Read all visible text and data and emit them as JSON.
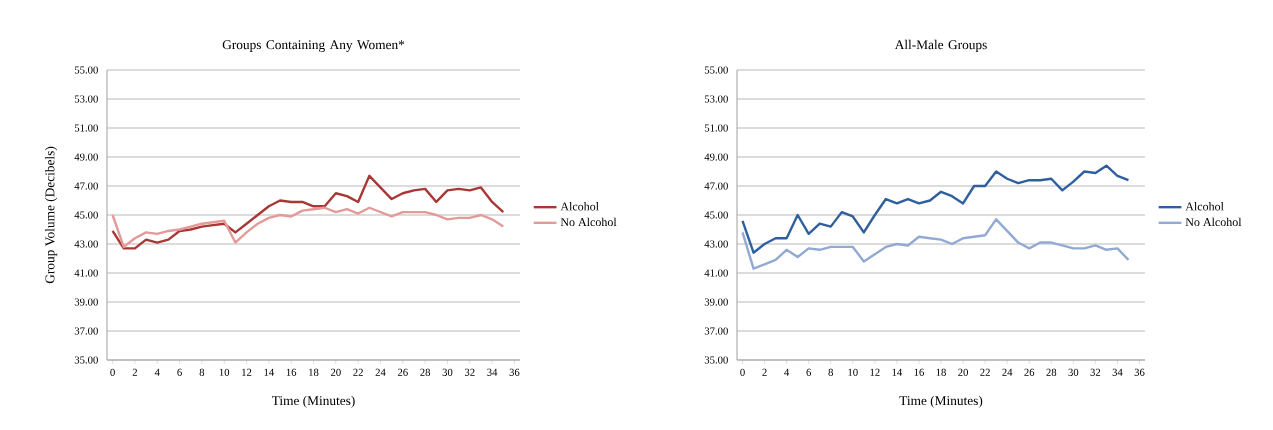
{
  "chart_data": [
    {
      "type": "line",
      "title": "Groups Containing Any Women*",
      "xlabel": "Time (Minutes)",
      "ylabel": "Group Volume (Decibels)",
      "x": [
        0,
        1,
        2,
        3,
        4,
        5,
        6,
        7,
        8,
        9,
        10,
        11,
        12,
        13,
        14,
        15,
        16,
        17,
        18,
        19,
        20,
        21,
        22,
        23,
        24,
        25,
        26,
        27,
        28,
        29,
        30,
        31,
        32,
        33,
        34,
        35
      ],
      "series": [
        {
          "name": "Alcohol",
          "color": "#a83836",
          "values": [
            43.9,
            42.7,
            42.7,
            43.3,
            43.1,
            43.3,
            43.9,
            44.0,
            44.2,
            44.3,
            44.4,
            43.8,
            44.4,
            45.0,
            45.6,
            46.0,
            45.9,
            45.9,
            45.6,
            45.6,
            46.5,
            46.3,
            45.9,
            47.7,
            46.9,
            46.1,
            46.5,
            46.7,
            46.8,
            45.9,
            46.7,
            46.8,
            46.7,
            46.9,
            45.9,
            45.2
          ]
        },
        {
          "name": "No Alcohol",
          "color": "#e39a98",
          "values": [
            45.0,
            42.8,
            43.4,
            43.8,
            43.7,
            43.9,
            44.0,
            44.2,
            44.4,
            44.5,
            44.6,
            43.1,
            43.8,
            44.4,
            44.8,
            45.0,
            44.9,
            45.3,
            45.4,
            45.5,
            45.2,
            45.4,
            45.1,
            45.5,
            45.2,
            44.9,
            45.2,
            45.2,
            45.2,
            45.0,
            44.7,
            44.8,
            44.8,
            45.0,
            44.7,
            44.2
          ]
        }
      ],
      "xlim": [
        -0.5,
        36.5
      ],
      "ylim": [
        35,
        55
      ],
      "xticks": [
        0,
        2,
        4,
        6,
        8,
        10,
        12,
        14,
        16,
        18,
        20,
        22,
        24,
        26,
        28,
        30,
        32,
        34,
        36
      ],
      "yticks": [
        {
          "value": 35,
          "label": "35.00"
        },
        {
          "value": 37,
          "label": "37.00"
        },
        {
          "value": 39,
          "label": "39.00"
        },
        {
          "value": 41,
          "label": "41.00"
        },
        {
          "value": 43,
          "label": "43.00"
        },
        {
          "value": 45,
          "label": "45.00"
        },
        {
          "value": 47,
          "label": "47.00"
        },
        {
          "value": 49,
          "label": "49.00"
        },
        {
          "value": 51,
          "label": "51.00"
        },
        {
          "value": 53,
          "label": "53.00"
        },
        {
          "value": 55,
          "label": "55.00"
        }
      ],
      "grid": "y",
      "legend": "right",
      "marker": "none"
    },
    {
      "type": "line",
      "title": "All-Male Groups",
      "xlabel": "Time (Minutes)",
      "x": [
        0,
        1,
        2,
        3,
        4,
        5,
        6,
        7,
        8,
        9,
        10,
        11,
        12,
        13,
        14,
        15,
        16,
        17,
        18,
        19,
        20,
        21,
        22,
        23,
        24,
        25,
        26,
        27,
        28,
        29,
        30,
        31,
        32,
        33,
        34,
        35
      ],
      "series": [
        {
          "name": "Alcohol",
          "color": "#2f5f9c",
          "values": [
            44.6,
            42.4,
            43.0,
            43.4,
            43.4,
            45.0,
            43.7,
            44.4,
            44.2,
            45.2,
            44.9,
            43.8,
            45.0,
            46.1,
            45.8,
            46.1,
            45.8,
            46.0,
            46.6,
            46.3,
            45.8,
            47.0,
            47.0,
            48.0,
            47.5,
            47.2,
            47.4,
            47.4,
            47.5,
            46.7,
            47.3,
            48.0,
            47.9,
            48.4,
            47.7,
            47.4
          ]
        },
        {
          "name": "No Alcohol",
          "color": "#92a9d4",
          "values": [
            43.8,
            41.3,
            41.6,
            41.9,
            42.6,
            42.1,
            42.7,
            42.6,
            42.8,
            42.8,
            42.8,
            41.8,
            42.3,
            42.8,
            43.0,
            42.9,
            43.5,
            43.4,
            43.3,
            43.0,
            43.4,
            43.5,
            43.6,
            44.7,
            43.9,
            43.1,
            42.7,
            43.1,
            43.1,
            42.9,
            42.7,
            42.7,
            42.9,
            42.6,
            42.7,
            41.9
          ]
        }
      ],
      "xlim": [
        -0.5,
        36.5
      ],
      "ylim": [
        35,
        55
      ],
      "xticks": [
        0,
        2,
        4,
        6,
        8,
        10,
        12,
        14,
        16,
        18,
        20,
        22,
        24,
        26,
        28,
        30,
        32,
        34,
        36
      ],
      "yticks": [
        {
          "value": 35,
          "label": "35.00"
        },
        {
          "value": 37,
          "label": "37.00"
        },
        {
          "value": 39,
          "label": "39.00"
        },
        {
          "value": 41,
          "label": "41.00"
        },
        {
          "value": 43,
          "label": "43.00"
        },
        {
          "value": 45,
          "label": "45.00"
        },
        {
          "value": 47,
          "label": "47.00"
        },
        {
          "value": 49,
          "label": "49.00"
        },
        {
          "value": 51,
          "label": "51.00"
        },
        {
          "value": 53,
          "label": "53.00"
        },
        {
          "value": 55,
          "label": "55.00"
        }
      ],
      "grid": "y",
      "legend": "right",
      "marker": "none"
    }
  ]
}
